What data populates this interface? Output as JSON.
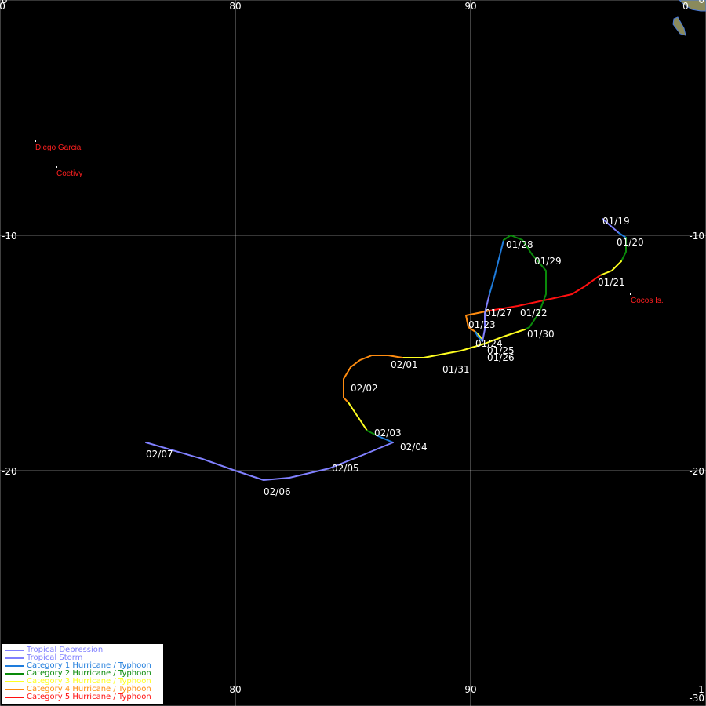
{
  "map": {
    "lon_range": [
      70,
      100
    ],
    "lat_range": [
      0,
      -30
    ],
    "gridlines": {
      "lon": [
        70,
        80,
        90,
        100
      ],
      "lat": [
        0,
        -10,
        -20,
        -30
      ]
    },
    "tick_labels": {
      "top": [
        "0",
        "80",
        "90",
        "0"
      ],
      "bottom": [
        "80",
        "90",
        "1"
      ],
      "left": [
        "0",
        "-10",
        "-20"
      ],
      "right": [
        "0",
        "-10",
        "-20",
        "-30"
      ]
    },
    "colors": {
      "background": "#000000",
      "grid": "#ffffff",
      "land": "#8a8a5c"
    }
  },
  "places": [
    {
      "name": "Diego Garcia",
      "lon": 71.5,
      "lat": -6.0
    },
    {
      "name": "Coetivy",
      "lon": 72.4,
      "lat": -7.1
    },
    {
      "name": "Cocos Is.",
      "lon": 96.8,
      "lat": -12.5
    }
  ],
  "land_islands": [
    {
      "lon": 98.9,
      "lat": -1.1
    }
  ],
  "track": {
    "segments": [
      {
        "cat": "td",
        "points": [
          [
            95.6,
            -9.3
          ],
          [
            96.3,
            -9.9
          ]
        ]
      },
      {
        "cat": "c1",
        "points": [
          [
            96.3,
            -9.9
          ],
          [
            96.6,
            -10.1
          ]
        ]
      },
      {
        "cat": "c2",
        "points": [
          [
            96.6,
            -10.1
          ],
          [
            96.6,
            -10.7
          ],
          [
            96.4,
            -11.1
          ]
        ]
      },
      {
        "cat": "c3",
        "points": [
          [
            96.4,
            -11.1
          ],
          [
            96.0,
            -11.5
          ],
          [
            95.5,
            -11.7
          ]
        ]
      },
      {
        "cat": "c5",
        "points": [
          [
            95.5,
            -11.7
          ],
          [
            94.8,
            -12.2
          ],
          [
            94.3,
            -12.5
          ],
          [
            93.4,
            -12.7
          ],
          [
            92.0,
            -13.0
          ],
          [
            90.8,
            -13.2
          ]
        ]
      },
      {
        "cat": "c4",
        "points": [
          [
            90.8,
            -13.2
          ],
          [
            90.3,
            -13.3
          ],
          [
            89.8,
            -13.4
          ],
          [
            89.9,
            -13.9
          ],
          [
            90.2,
            -14.1
          ]
        ]
      },
      {
        "cat": "c3",
        "points": [
          [
            90.2,
            -14.1
          ],
          [
            90.4,
            -14.3
          ],
          [
            90.5,
            -14.5
          ]
        ]
      },
      {
        "cat": "c1",
        "points": [
          [
            90.5,
            -14.5
          ],
          [
            90.3,
            -14.3
          ],
          [
            90.2,
            -14.1
          ]
        ]
      },
      {
        "cat": "td",
        "points": [
          [
            90.5,
            -14.5
          ],
          [
            90.6,
            -14.0
          ],
          [
            90.6,
            -13.3
          ],
          [
            90.8,
            -12.5
          ]
        ]
      },
      {
        "cat": "c1",
        "points": [
          [
            90.8,
            -12.5
          ],
          [
            91.0,
            -11.8
          ],
          [
            91.3,
            -10.6
          ],
          [
            91.4,
            -10.2
          ]
        ]
      },
      {
        "cat": "c2",
        "points": [
          [
            91.4,
            -10.2
          ],
          [
            91.7,
            -10.0
          ],
          [
            92.2,
            -10.2
          ],
          [
            92.6,
            -10.8
          ],
          [
            93.2,
            -11.5
          ],
          [
            93.2,
            -12.5
          ],
          [
            92.9,
            -13.3
          ],
          [
            92.5,
            -13.9
          ],
          [
            92.3,
            -14.0
          ]
        ]
      },
      {
        "cat": "c3",
        "points": [
          [
            92.3,
            -14.0
          ],
          [
            91.4,
            -14.3
          ],
          [
            90.6,
            -14.6
          ],
          [
            89.6,
            -14.9
          ],
          [
            88.0,
            -15.2
          ],
          [
            87.1,
            -15.2
          ]
        ]
      },
      {
        "cat": "c4",
        "points": [
          [
            87.1,
            -15.2
          ],
          [
            86.5,
            -15.1
          ],
          [
            85.8,
            -15.1
          ],
          [
            85.3,
            -15.3
          ],
          [
            84.9,
            -15.6
          ],
          [
            84.6,
            -16.1
          ],
          [
            84.6,
            -16.9
          ],
          [
            84.8,
            -17.1
          ]
        ]
      },
      {
        "cat": "c3",
        "points": [
          [
            84.8,
            -17.1
          ],
          [
            85.2,
            -17.7
          ],
          [
            85.6,
            -18.3
          ]
        ]
      },
      {
        "cat": "c2",
        "points": [
          [
            85.6,
            -18.3
          ],
          [
            86.0,
            -18.5
          ]
        ]
      },
      {
        "cat": "c1",
        "points": [
          [
            86.0,
            -18.5
          ],
          [
            86.7,
            -18.8
          ]
        ]
      },
      {
        "cat": "ts",
        "points": [
          [
            86.7,
            -18.8
          ],
          [
            85.5,
            -19.3
          ],
          [
            84.0,
            -19.9
          ],
          [
            82.3,
            -20.3
          ],
          [
            81.2,
            -20.4
          ],
          [
            80.0,
            -20.0
          ],
          [
            78.6,
            -19.5
          ],
          [
            76.2,
            -18.8
          ]
        ]
      }
    ],
    "date_labels": [
      {
        "text": "01/19",
        "lon": 95.6,
        "lat": -9.2
      },
      {
        "text": "01/20",
        "lon": 96.2,
        "lat": -10.1
      },
      {
        "text": "01/21",
        "lon": 95.4,
        "lat": -11.8
      },
      {
        "text": "01/22",
        "lon": 92.1,
        "lat": -13.1
      },
      {
        "text": "01/23",
        "lon": 89.9,
        "lat": -13.6
      },
      {
        "text": "01/24",
        "lon": 90.2,
        "lat": -14.4
      },
      {
        "text": "01/25",
        "lon": 90.7,
        "lat": -14.7
      },
      {
        "text": "01/26",
        "lon": 90.7,
        "lat": -15.0
      },
      {
        "text": "01/27",
        "lon": 90.6,
        "lat": -13.1
      },
      {
        "text": "01/28",
        "lon": 91.5,
        "lat": -10.2
      },
      {
        "text": "01/29",
        "lon": 92.7,
        "lat": -10.9
      },
      {
        "text": "01/30",
        "lon": 92.4,
        "lat": -14.0
      },
      {
        "text": "01/31",
        "lon": 88.8,
        "lat": -15.5
      },
      {
        "text": "02/01",
        "lon": 86.6,
        "lat": -15.3
      },
      {
        "text": "02/02",
        "lon": 84.9,
        "lat": -16.3
      },
      {
        "text": "02/03",
        "lon": 85.9,
        "lat": -18.2
      },
      {
        "text": "02/04",
        "lon": 87.0,
        "lat": -18.8
      },
      {
        "text": "02/05",
        "lon": 84.1,
        "lat": -19.7
      },
      {
        "text": "02/06",
        "lon": 81.2,
        "lat": -20.7
      },
      {
        "text": "02/07",
        "lon": 76.2,
        "lat": -19.1
      }
    ]
  },
  "legend": {
    "items": [
      {
        "key": "td",
        "label": "Tropical Depression",
        "color": "#8080ff"
      },
      {
        "key": "ts",
        "label": "Tropical Storm",
        "color": "#8080ff"
      },
      {
        "key": "c1",
        "label": "Category 1 Hurricane / Typhoon",
        "color": "#1e7cdc"
      },
      {
        "key": "c2",
        "label": "Category 2 Hurricane / Typhoon",
        "color": "#0a8a0a"
      },
      {
        "key": "c3",
        "label": "Category 3 Hurricane / Typhoon",
        "color": "#ffff20"
      },
      {
        "key": "c4",
        "label": "Category 4 Hurricane / Typhoon",
        "color": "#ff8c10"
      },
      {
        "key": "c5",
        "label": "Category 5 Hurricane / Typhoon",
        "color": "#ff1010"
      }
    ]
  }
}
